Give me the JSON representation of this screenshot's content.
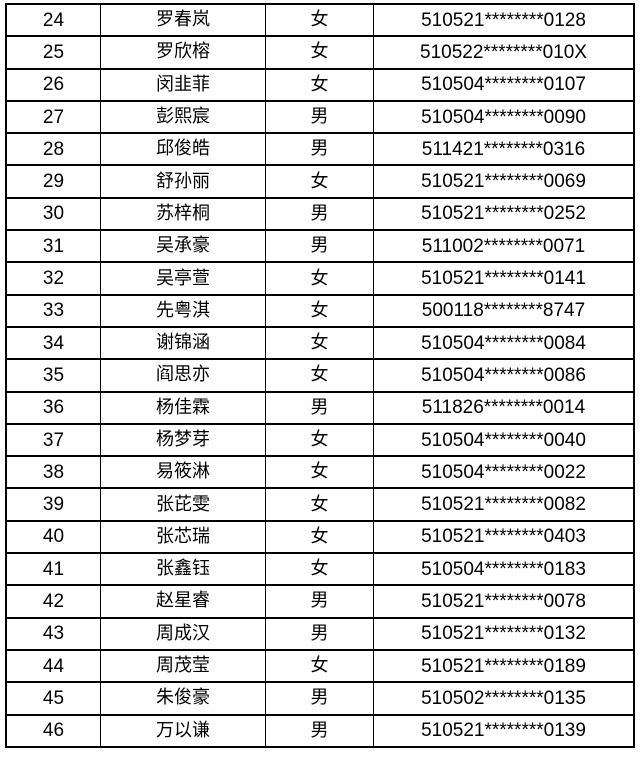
{
  "rows": [
    {
      "no": "24",
      "name": "罗春岚",
      "sex": "女",
      "id": "510521********0128"
    },
    {
      "no": "25",
      "name": "罗欣榕",
      "sex": "女",
      "id": "510522********010X"
    },
    {
      "no": "26",
      "name": "闵韭菲",
      "sex": "女",
      "id": "510504********0107"
    },
    {
      "no": "27",
      "name": "彭熙宸",
      "sex": "男",
      "id": "510504********0090"
    },
    {
      "no": "28",
      "name": "邱俊皓",
      "sex": "男",
      "id": "511421********0316"
    },
    {
      "no": "29",
      "name": "舒孙丽",
      "sex": "女",
      "id": "510521********0069"
    },
    {
      "no": "30",
      "name": "苏梓桐",
      "sex": "男",
      "id": "510521********0252"
    },
    {
      "no": "31",
      "name": "吴承豪",
      "sex": "男",
      "id": "511002********0071"
    },
    {
      "no": "32",
      "name": "吴亭萱",
      "sex": "女",
      "id": "510521********0141"
    },
    {
      "no": "33",
      "name": "先粤淇",
      "sex": "女",
      "id": "500118********8747"
    },
    {
      "no": "34",
      "name": "谢锦涵",
      "sex": "女",
      "id": "510504********0084"
    },
    {
      "no": "35",
      "name": "阎思亦",
      "sex": "女",
      "id": "510504********0086"
    },
    {
      "no": "36",
      "name": "杨佳霖",
      "sex": "男",
      "id": "511826********0014"
    },
    {
      "no": "37",
      "name": "杨梦芽",
      "sex": "女",
      "id": "510504********0040"
    },
    {
      "no": "38",
      "name": "易筱淋",
      "sex": "女",
      "id": "510504********0022"
    },
    {
      "no": "39",
      "name": "张芘雯",
      "sex": "女",
      "id": "510521********0082"
    },
    {
      "no": "40",
      "name": "张芯瑞",
      "sex": "女",
      "id": "510521********0403"
    },
    {
      "no": "41",
      "name": "张鑫钰",
      "sex": "女",
      "id": "510504********0183"
    },
    {
      "no": "42",
      "name": "赵星睿",
      "sex": "男",
      "id": "510521********0078"
    },
    {
      "no": "43",
      "name": "周成汉",
      "sex": "男",
      "id": "510521********0132"
    },
    {
      "no": "44",
      "name": "周茂莹",
      "sex": "女",
      "id": "510521********0189"
    },
    {
      "no": "45",
      "name": "朱俊豪",
      "sex": "男",
      "id": "510502********0135"
    },
    {
      "no": "46",
      "name": "万以谦",
      "sex": "男",
      "id": "510521********0139"
    }
  ]
}
